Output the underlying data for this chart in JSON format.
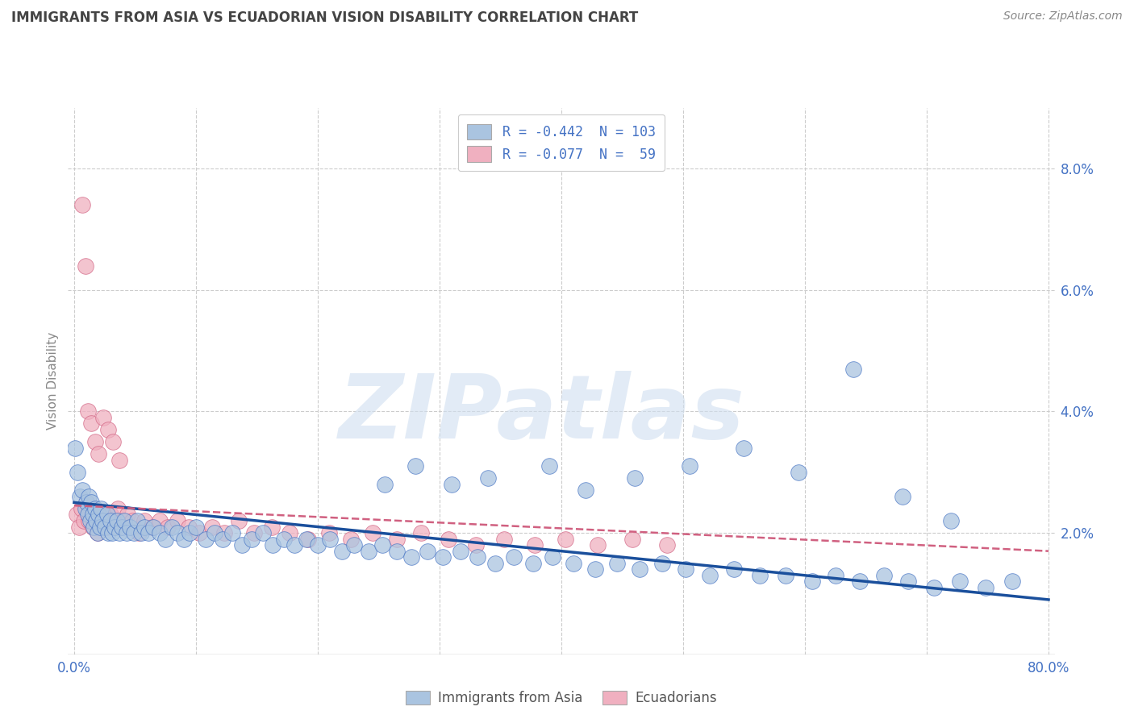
{
  "title": "IMMIGRANTS FROM ASIA VS ECUADORIAN VISION DISABILITY CORRELATION CHART",
  "source": "Source: ZipAtlas.com",
  "ylabel": "Vision Disability",
  "y_ticks_right": [
    0.02,
    0.04,
    0.06,
    0.08
  ],
  "y_tick_labels_right": [
    "2.0%",
    "4.0%",
    "6.0%",
    "8.0%"
  ],
  "x_ticks": [
    0.0,
    0.1,
    0.2,
    0.3,
    0.4,
    0.5,
    0.6,
    0.7,
    0.8
  ],
  "xlim": [
    -0.005,
    0.805
  ],
  "ylim": [
    0.0,
    0.09
  ],
  "legend_label_blue": "Immigrants from Asia",
  "legend_label_pink": "Ecuadorians",
  "blue_color": "#aac4e0",
  "blue_edge_color": "#4472c4",
  "blue_line_color": "#1a4f9c",
  "pink_color": "#f0b0c0",
  "pink_edge_color": "#d06080",
  "pink_line_color": "#d06080",
  "watermark": "ZIPatlas",
  "background_color": "#ffffff",
  "grid_color": "#cccccc",
  "blue_trend_x": [
    0.0,
    0.8
  ],
  "blue_trend_y": [
    0.025,
    0.009
  ],
  "pink_trend_x": [
    0.0,
    0.8
  ],
  "pink_trend_y": [
    0.0245,
    0.017
  ],
  "blue_scatter_x": [
    0.001,
    0.003,
    0.005,
    0.007,
    0.009,
    0.01,
    0.011,
    0.012,
    0.013,
    0.014,
    0.015,
    0.016,
    0.017,
    0.018,
    0.019,
    0.02,
    0.021,
    0.022,
    0.023,
    0.025,
    0.027,
    0.028,
    0.03,
    0.031,
    0.033,
    0.035,
    0.037,
    0.039,
    0.041,
    0.043,
    0.046,
    0.049,
    0.052,
    0.055,
    0.058,
    0.061,
    0.065,
    0.07,
    0.075,
    0.08,
    0.085,
    0.09,
    0.095,
    0.1,
    0.108,
    0.115,
    0.122,
    0.13,
    0.138,
    0.146,
    0.155,
    0.163,
    0.172,
    0.181,
    0.191,
    0.2,
    0.21,
    0.22,
    0.23,
    0.242,
    0.253,
    0.265,
    0.277,
    0.29,
    0.303,
    0.317,
    0.331,
    0.346,
    0.361,
    0.377,
    0.393,
    0.41,
    0.428,
    0.446,
    0.464,
    0.483,
    0.502,
    0.522,
    0.542,
    0.563,
    0.584,
    0.606,
    0.625,
    0.645,
    0.665,
    0.685,
    0.706,
    0.727,
    0.748,
    0.77,
    0.34,
    0.39,
    0.28,
    0.255,
    0.31,
    0.42,
    0.46,
    0.505,
    0.55,
    0.595,
    0.64,
    0.68,
    0.72
  ],
  "blue_scatter_y": [
    0.034,
    0.03,
    0.026,
    0.027,
    0.024,
    0.025,
    0.023,
    0.026,
    0.022,
    0.025,
    0.023,
    0.021,
    0.024,
    0.022,
    0.02,
    0.023,
    0.021,
    0.024,
    0.022,
    0.021,
    0.023,
    0.02,
    0.022,
    0.02,
    0.021,
    0.022,
    0.02,
    0.021,
    0.022,
    0.02,
    0.021,
    0.02,
    0.022,
    0.02,
    0.021,
    0.02,
    0.021,
    0.02,
    0.019,
    0.021,
    0.02,
    0.019,
    0.02,
    0.021,
    0.019,
    0.02,
    0.019,
    0.02,
    0.018,
    0.019,
    0.02,
    0.018,
    0.019,
    0.018,
    0.019,
    0.018,
    0.019,
    0.017,
    0.018,
    0.017,
    0.018,
    0.017,
    0.016,
    0.017,
    0.016,
    0.017,
    0.016,
    0.015,
    0.016,
    0.015,
    0.016,
    0.015,
    0.014,
    0.015,
    0.014,
    0.015,
    0.014,
    0.013,
    0.014,
    0.013,
    0.013,
    0.012,
    0.013,
    0.012,
    0.013,
    0.012,
    0.011,
    0.012,
    0.011,
    0.012,
    0.029,
    0.031,
    0.031,
    0.028,
    0.028,
    0.027,
    0.029,
    0.031,
    0.034,
    0.03,
    0.047,
    0.026,
    0.022
  ],
  "pink_scatter_x": [
    0.002,
    0.004,
    0.006,
    0.008,
    0.01,
    0.012,
    0.013,
    0.015,
    0.016,
    0.018,
    0.019,
    0.021,
    0.023,
    0.025,
    0.027,
    0.03,
    0.033,
    0.036,
    0.04,
    0.044,
    0.048,
    0.053,
    0.058,
    0.064,
    0.07,
    0.077,
    0.085,
    0.094,
    0.103,
    0.113,
    0.123,
    0.135,
    0.148,
    0.162,
    0.177,
    0.192,
    0.209,
    0.227,
    0.245,
    0.265,
    0.285,
    0.307,
    0.33,
    0.353,
    0.378,
    0.403,
    0.43,
    0.458,
    0.487,
    0.007,
    0.009,
    0.011,
    0.014,
    0.017,
    0.02,
    0.024,
    0.028,
    0.032,
    0.037
  ],
  "pink_scatter_y": [
    0.023,
    0.021,
    0.024,
    0.022,
    0.025,
    0.022,
    0.023,
    0.021,
    0.024,
    0.022,
    0.02,
    0.023,
    0.022,
    0.023,
    0.021,
    0.023,
    0.022,
    0.024,
    0.022,
    0.023,
    0.022,
    0.02,
    0.022,
    0.021,
    0.022,
    0.021,
    0.022,
    0.021,
    0.02,
    0.021,
    0.02,
    0.022,
    0.02,
    0.021,
    0.02,
    0.019,
    0.02,
    0.019,
    0.02,
    0.019,
    0.02,
    0.019,
    0.018,
    0.019,
    0.018,
    0.019,
    0.018,
    0.019,
    0.018,
    0.074,
    0.064,
    0.04,
    0.038,
    0.035,
    0.033,
    0.039,
    0.037,
    0.035,
    0.032
  ]
}
